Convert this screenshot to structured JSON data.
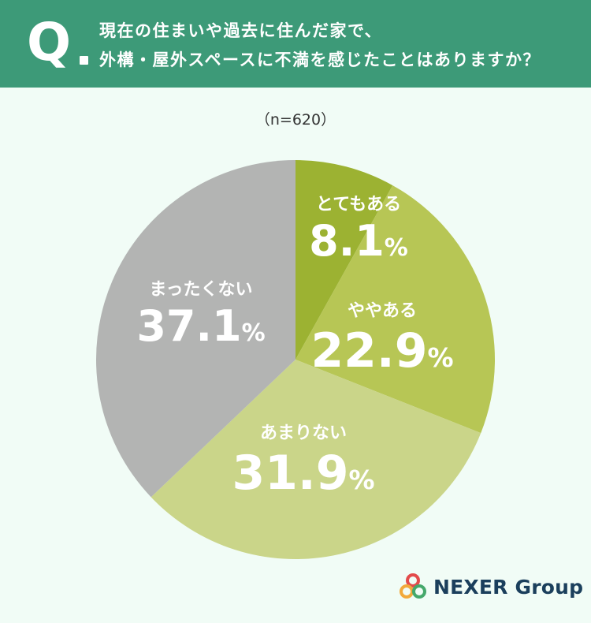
{
  "header": {
    "q_letter": "Q",
    "question_line1": "現在の住まいや過去に住んだ家で、",
    "question_line2": "外構・屋外スペースに不満を感じたことはありますか？"
  },
  "sample_size": "（n=620）",
  "chart_data": {
    "type": "pie",
    "title": "現在の住まいや過去に住んだ家で、外構・屋外スペースに不満を感じたことはありますか？",
    "categories": [
      "とてもある",
      "ややある",
      "あまりない",
      "まったくない"
    ],
    "values": [
      8.1,
      22.9,
      31.9,
      37.1
    ],
    "value_suffix": "%",
    "colors": [
      "#9cb232",
      "#b7c655",
      "#cad589",
      "#b3b4b3"
    ],
    "start": "12 o'clock, clockwise"
  },
  "logo": {
    "text": "NEXER Group",
    "ring_colors": [
      "#e34b4b",
      "#f2a93b",
      "#45a86b"
    ]
  }
}
